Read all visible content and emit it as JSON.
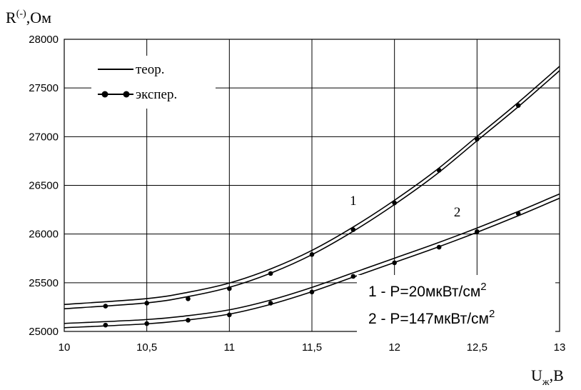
{
  "chart_data": {
    "type": "line",
    "ylabel": "R(-),Ом",
    "ylabel_main": "R",
    "ylabel_sup": "(-)",
    "ylabel_unit": ",Ом",
    "xlabel": "Uж,В",
    "xlabel_main": "U",
    "xlabel_sub": "ж",
    "xlabel_unit": ",B",
    "xlim": [
      10,
      13
    ],
    "ylim": [
      25000,
      28000
    ],
    "x_ticks": [
      10,
      10.5,
      11,
      11.5,
      12,
      12.5,
      13
    ],
    "x_tick_labels": [
      "10",
      "10,5",
      "11",
      "11,5",
      "12",
      "12,5",
      "13"
    ],
    "y_ticks": [
      25000,
      25500,
      26000,
      26500,
      27000,
      27500,
      28000
    ],
    "y_tick_labels": [
      "25000",
      "25500",
      "26000",
      "26500",
      "27000",
      "27500",
      "28000"
    ],
    "grid": true,
    "legend": {
      "placement": "top-left",
      "entries": [
        {
          "label": "теор.",
          "style": "line"
        },
        {
          "label": "экспер.",
          "style": "line-dots"
        }
      ]
    },
    "annotations": [
      {
        "text": "1 - P=20мкВт/см²",
        "main": "1 - P=20мкВт/см",
        "sup": "2"
      },
      {
        "text": "2 - P=147мкВт/см²",
        "main": "2 - P=147мкВт/см",
        "sup": "2"
      }
    ],
    "series": [
      {
        "name": "1",
        "style": "theory-double-line",
        "x": [
          10,
          10.5,
          10.75,
          11,
          11.25,
          11.5,
          11.75,
          12,
          12.25,
          12.5,
          12.75,
          13
        ],
        "y": [
          25255,
          25315,
          25380,
          25475,
          25620,
          25810,
          26050,
          26325,
          26630,
          26980,
          27330,
          27700
        ]
      },
      {
        "name": "1",
        "style": "experiment-dots",
        "x": [
          10.25,
          10.5,
          10.75,
          11,
          11.25,
          11.5,
          11.75,
          12,
          12.27,
          12.5,
          12.75
        ],
        "y": [
          25260,
          25290,
          25335,
          25440,
          25595,
          25790,
          26045,
          26320,
          26655,
          26975,
          27320
        ]
      },
      {
        "name": "2",
        "style": "theory-double-line",
        "x": [
          10,
          10.5,
          10.75,
          11,
          11.25,
          11.5,
          11.75,
          12,
          12.25,
          12.5,
          12.75,
          13
        ],
        "y": [
          25060,
          25100,
          25140,
          25200,
          25300,
          25430,
          25580,
          25730,
          25880,
          26040,
          26210,
          26390
        ]
      },
      {
        "name": "2",
        "style": "experiment-dots",
        "x": [
          10.25,
          10.5,
          10.75,
          11,
          11.25,
          11.5,
          11.75,
          12,
          12.27,
          12.5,
          12.75
        ],
        "y": [
          25065,
          25080,
          25115,
          25170,
          25290,
          25405,
          25565,
          25705,
          25865,
          26025,
          26210
        ]
      }
    ],
    "curve_labels": [
      {
        "text": "1",
        "x": 11.75,
        "y": 26300
      },
      {
        "text": "2",
        "x": 12.38,
        "y": 26180
      }
    ]
  }
}
